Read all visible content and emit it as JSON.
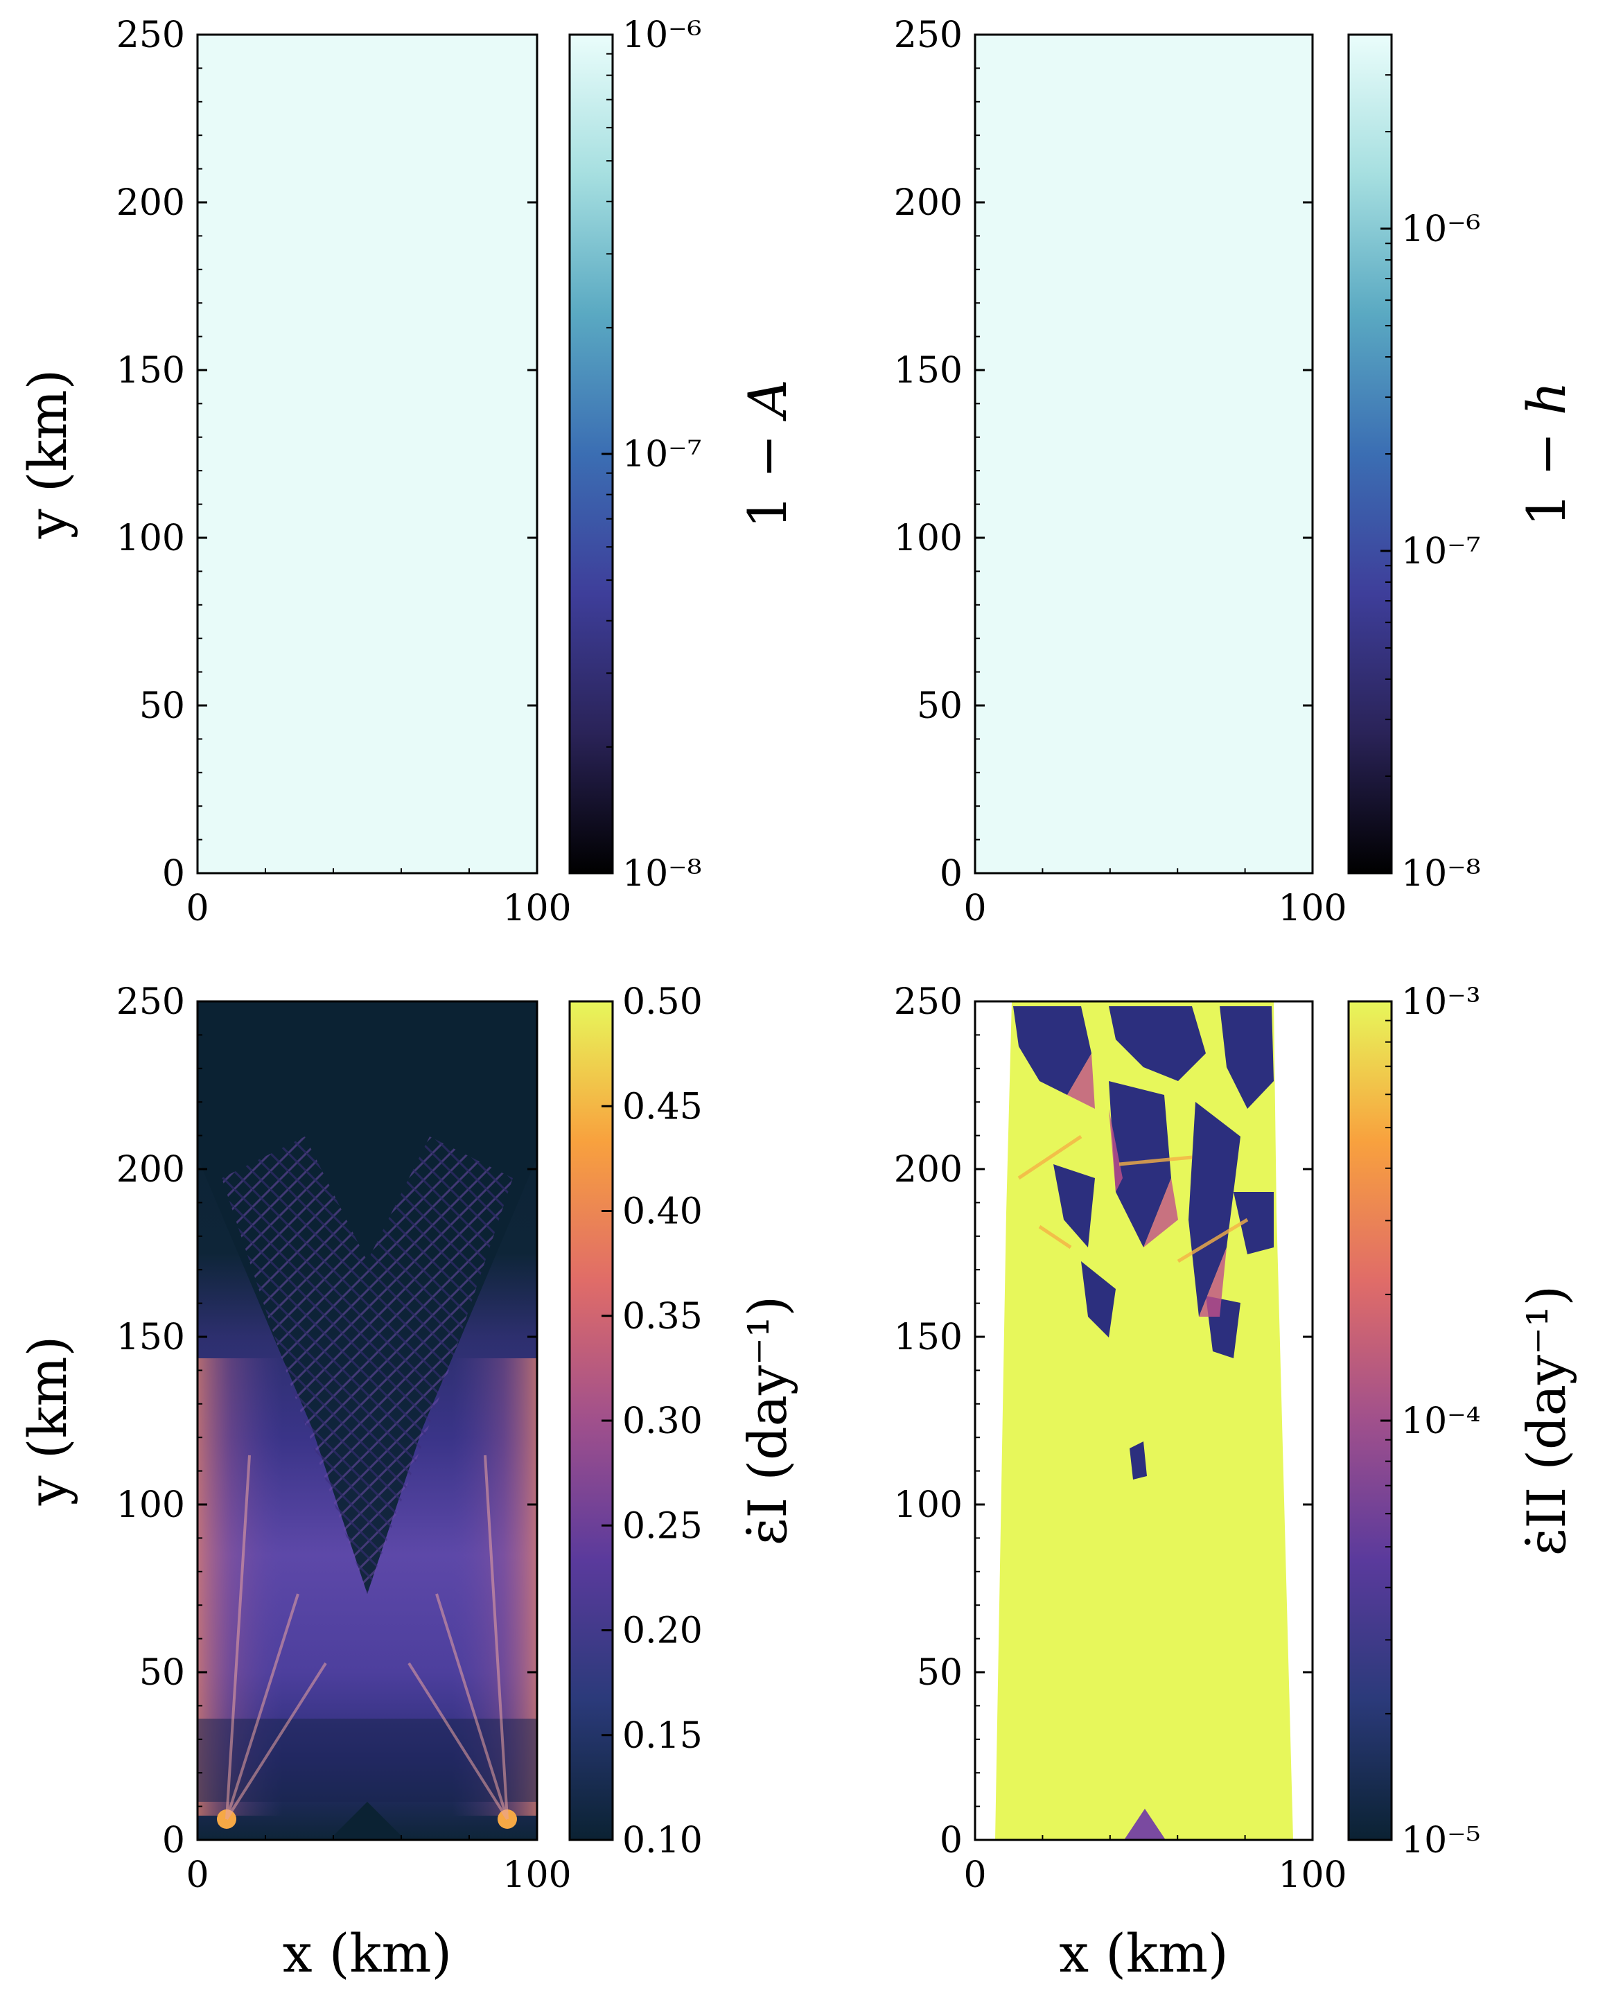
{
  "figure": {
    "panels": 4,
    "layout": "2x2"
  },
  "colors": {
    "uniform_fill": "#e8fbf9",
    "cmap_cool": [
      "#000000",
      "#2a2358",
      "#3e3e9a",
      "#3b6eb3",
      "#5aa9c2",
      "#a6dfe0",
      "#eafdfb"
    ],
    "cmap_warm": [
      "#0b2233",
      "#2b3a7a",
      "#5a3a9c",
      "#a0508c",
      "#e06c68",
      "#f8a13e",
      "#e7f75b"
    ]
  },
  "chart_data": [
    {
      "id": "top-left",
      "type": "heatmap",
      "xlabel": "",
      "ylabel": "y (km)",
      "xlim": [
        0,
        100
      ],
      "ylim": [
        0,
        250
      ],
      "xticks": [
        0,
        100
      ],
      "yticks": [
        0,
        50,
        100,
        150,
        200,
        250
      ],
      "xtick_labels": [
        "0",
        "100"
      ],
      "ytick_labels": [
        "0",
        "50",
        "100",
        "150",
        "200",
        "250"
      ],
      "field": "uniform",
      "colorbar": {
        "label": "1 − A",
        "scale": "log",
        "range": [
          1e-08,
          1e-06
        ],
        "tick_labels": [
          "10⁻⁸",
          "10⁻⁷",
          "10⁻⁶"
        ],
        "cmap": "cool"
      }
    },
    {
      "id": "top-right",
      "type": "heatmap",
      "xlabel": "",
      "ylabel": "",
      "xlim": [
        0,
        100
      ],
      "ylim": [
        0,
        250
      ],
      "xticks": [
        0,
        100
      ],
      "yticks": [
        0,
        50,
        100,
        150,
        200,
        250
      ],
      "xtick_labels": [
        "0",
        "100"
      ],
      "ytick_labels": [
        "0",
        "50",
        "100",
        "150",
        "200",
        "250"
      ],
      "field": "uniform",
      "colorbar": {
        "label": "1 − h",
        "scale": "log",
        "range": [
          1e-08,
          4e-06
        ],
        "ticks": [
          1e-08,
          1e-07,
          1e-06
        ],
        "tick_labels": [
          "10⁻⁸",
          "10⁻⁷",
          "10⁻⁶"
        ],
        "cmap": "cool"
      }
    },
    {
      "id": "bottom-left",
      "type": "heatmap",
      "xlabel": "x (km)",
      "ylabel": "y (km)",
      "xlim": [
        0,
        100
      ],
      "ylim": [
        0,
        250
      ],
      "xticks": [
        0,
        100
      ],
      "yticks": [
        0,
        50,
        100,
        150,
        200,
        250
      ],
      "xtick_labels": [
        "0",
        "100"
      ],
      "ytick_labels": [
        "0",
        "50",
        "100",
        "150",
        "200",
        "250"
      ],
      "field": "divergence",
      "colorbar": {
        "label": "ε̇I (day⁻¹)",
        "scale": "linear",
        "range": [
          0.1,
          0.5
        ],
        "ticks": [
          0.1,
          0.15,
          0.2,
          0.25,
          0.3,
          0.35,
          0.4,
          0.45,
          0.5
        ],
        "tick_labels": [
          "0.10",
          "0.15",
          "0.20",
          "0.25",
          "0.30",
          "0.35",
          "0.40",
          "0.45",
          "0.50"
        ],
        "cmap": "warm"
      }
    },
    {
      "id": "bottom-right",
      "type": "heatmap",
      "xlabel": "x (km)",
      "ylabel": "",
      "xlim": [
        0,
        100
      ],
      "ylim": [
        0,
        250
      ],
      "xticks": [
        0,
        100
      ],
      "yticks": [
        0,
        50,
        100,
        150,
        200,
        250
      ],
      "xtick_labels": [
        "0",
        "100"
      ],
      "ytick_labels": [
        "0",
        "50",
        "100",
        "150",
        "200",
        "250"
      ],
      "field": "shear",
      "colorbar": {
        "label": "ε̇II (day⁻¹)",
        "scale": "log",
        "range": [
          1e-05,
          0.001
        ],
        "tick_labels": [
          "10⁻⁵",
          "10⁻⁴",
          "10⁻³"
        ],
        "cmap": "warm"
      }
    }
  ]
}
